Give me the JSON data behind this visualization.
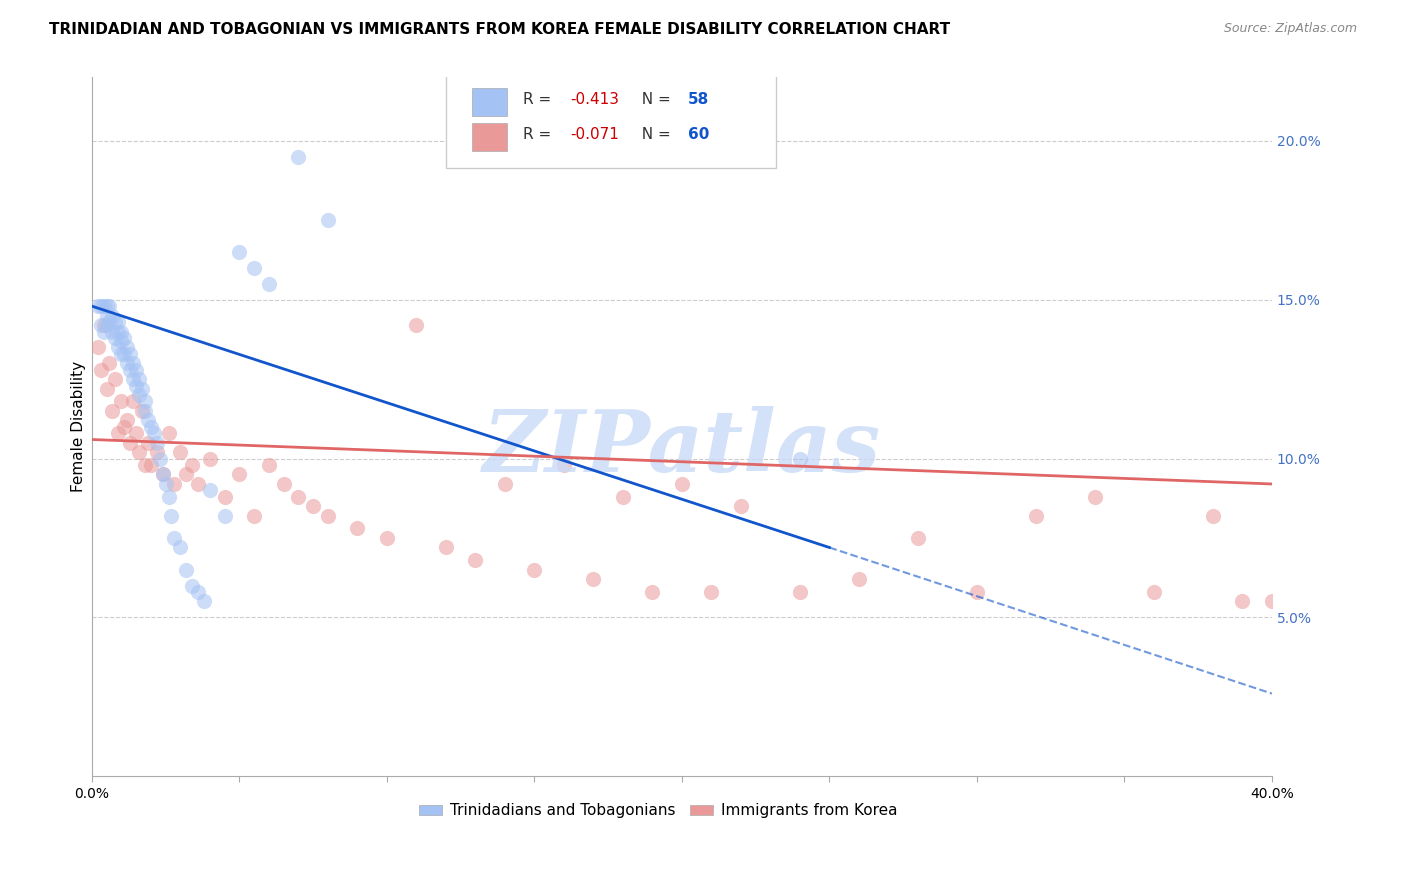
{
  "title": "TRINIDADIAN AND TOBAGONIAN VS IMMIGRANTS FROM KOREA FEMALE DISABILITY CORRELATION CHART",
  "source": "Source: ZipAtlas.com",
  "ylabel": "Female Disability",
  "xlim": [
    0.0,
    0.4
  ],
  "ylim": [
    0.0,
    0.22
  ],
  "ytick_labels_right": [
    "5.0%",
    "10.0%",
    "15.0%",
    "20.0%"
  ],
  "ytick_vals_right": [
    0.05,
    0.1,
    0.15,
    0.2
  ],
  "blue_R": "-0.413",
  "blue_N": "58",
  "pink_R": "-0.071",
  "pink_N": "60",
  "blue_color": "#a4c2f4",
  "pink_color": "#ea9999",
  "blue_line_color": "#1155cc",
  "pink_line_color": "#e06666",
  "watermark": "ZIPatlas",
  "watermark_color": "#c9daf8",
  "blue_scatter_x": [
    0.002,
    0.003,
    0.003,
    0.004,
    0.004,
    0.005,
    0.005,
    0.005,
    0.006,
    0.006,
    0.007,
    0.007,
    0.008,
    0.008,
    0.009,
    0.009,
    0.009,
    0.01,
    0.01,
    0.01,
    0.011,
    0.011,
    0.012,
    0.012,
    0.013,
    0.013,
    0.014,
    0.014,
    0.015,
    0.015,
    0.016,
    0.016,
    0.017,
    0.018,
    0.018,
    0.019,
    0.02,
    0.021,
    0.022,
    0.023,
    0.024,
    0.025,
    0.026,
    0.027,
    0.028,
    0.03,
    0.032,
    0.034,
    0.036,
    0.038,
    0.04,
    0.045,
    0.05,
    0.055,
    0.06,
    0.07,
    0.08,
    0.24
  ],
  "blue_scatter_y": [
    0.148,
    0.148,
    0.142,
    0.148,
    0.14,
    0.148,
    0.145,
    0.142,
    0.148,
    0.143,
    0.145,
    0.14,
    0.143,
    0.138,
    0.143,
    0.14,
    0.135,
    0.14,
    0.137,
    0.133,
    0.138,
    0.133,
    0.135,
    0.13,
    0.133,
    0.128,
    0.13,
    0.125,
    0.128,
    0.123,
    0.125,
    0.12,
    0.122,
    0.118,
    0.115,
    0.112,
    0.11,
    0.108,
    0.105,
    0.1,
    0.095,
    0.092,
    0.088,
    0.082,
    0.075,
    0.072,
    0.065,
    0.06,
    0.058,
    0.055,
    0.09,
    0.082,
    0.165,
    0.16,
    0.155,
    0.195,
    0.175,
    0.1
  ],
  "pink_scatter_x": [
    0.002,
    0.003,
    0.004,
    0.005,
    0.006,
    0.007,
    0.008,
    0.009,
    0.01,
    0.011,
    0.012,
    0.013,
    0.014,
    0.015,
    0.016,
    0.017,
    0.018,
    0.019,
    0.02,
    0.022,
    0.024,
    0.026,
    0.028,
    0.03,
    0.032,
    0.034,
    0.036,
    0.04,
    0.045,
    0.05,
    0.055,
    0.06,
    0.065,
    0.07,
    0.075,
    0.08,
    0.09,
    0.1,
    0.11,
    0.12,
    0.13,
    0.14,
    0.15,
    0.16,
    0.17,
    0.18,
    0.19,
    0.2,
    0.21,
    0.22,
    0.24,
    0.26,
    0.28,
    0.3,
    0.32,
    0.34,
    0.36,
    0.38,
    0.39,
    0.4
  ],
  "pink_scatter_y": [
    0.135,
    0.128,
    0.142,
    0.122,
    0.13,
    0.115,
    0.125,
    0.108,
    0.118,
    0.11,
    0.112,
    0.105,
    0.118,
    0.108,
    0.102,
    0.115,
    0.098,
    0.105,
    0.098,
    0.102,
    0.095,
    0.108,
    0.092,
    0.102,
    0.095,
    0.098,
    0.092,
    0.1,
    0.088,
    0.095,
    0.082,
    0.098,
    0.092,
    0.088,
    0.085,
    0.082,
    0.078,
    0.075,
    0.142,
    0.072,
    0.068,
    0.092,
    0.065,
    0.098,
    0.062,
    0.088,
    0.058,
    0.092,
    0.058,
    0.085,
    0.058,
    0.062,
    0.075,
    0.058,
    0.082,
    0.088,
    0.058,
    0.082,
    0.055,
    0.055
  ],
  "blue_line_x0": 0.0,
  "blue_line_x1": 0.25,
  "blue_line_y0": 0.148,
  "blue_line_y1": 0.072,
  "pink_line_x0": 0.0,
  "pink_line_x1": 0.4,
  "pink_line_y0": 0.106,
  "pink_line_y1": 0.092,
  "dash_line_x0": 0.25,
  "dash_line_x1": 0.4,
  "dash_line_y0": 0.072,
  "dash_line_y1": 0.026,
  "title_fontsize": 11,
  "axis_label_fontsize": 11,
  "tick_fontsize": 10,
  "right_tick_color": "#4472c4",
  "legend_label_blue": "Trinidadians and Tobagonians",
  "legend_label_pink": "Immigrants from Korea"
}
